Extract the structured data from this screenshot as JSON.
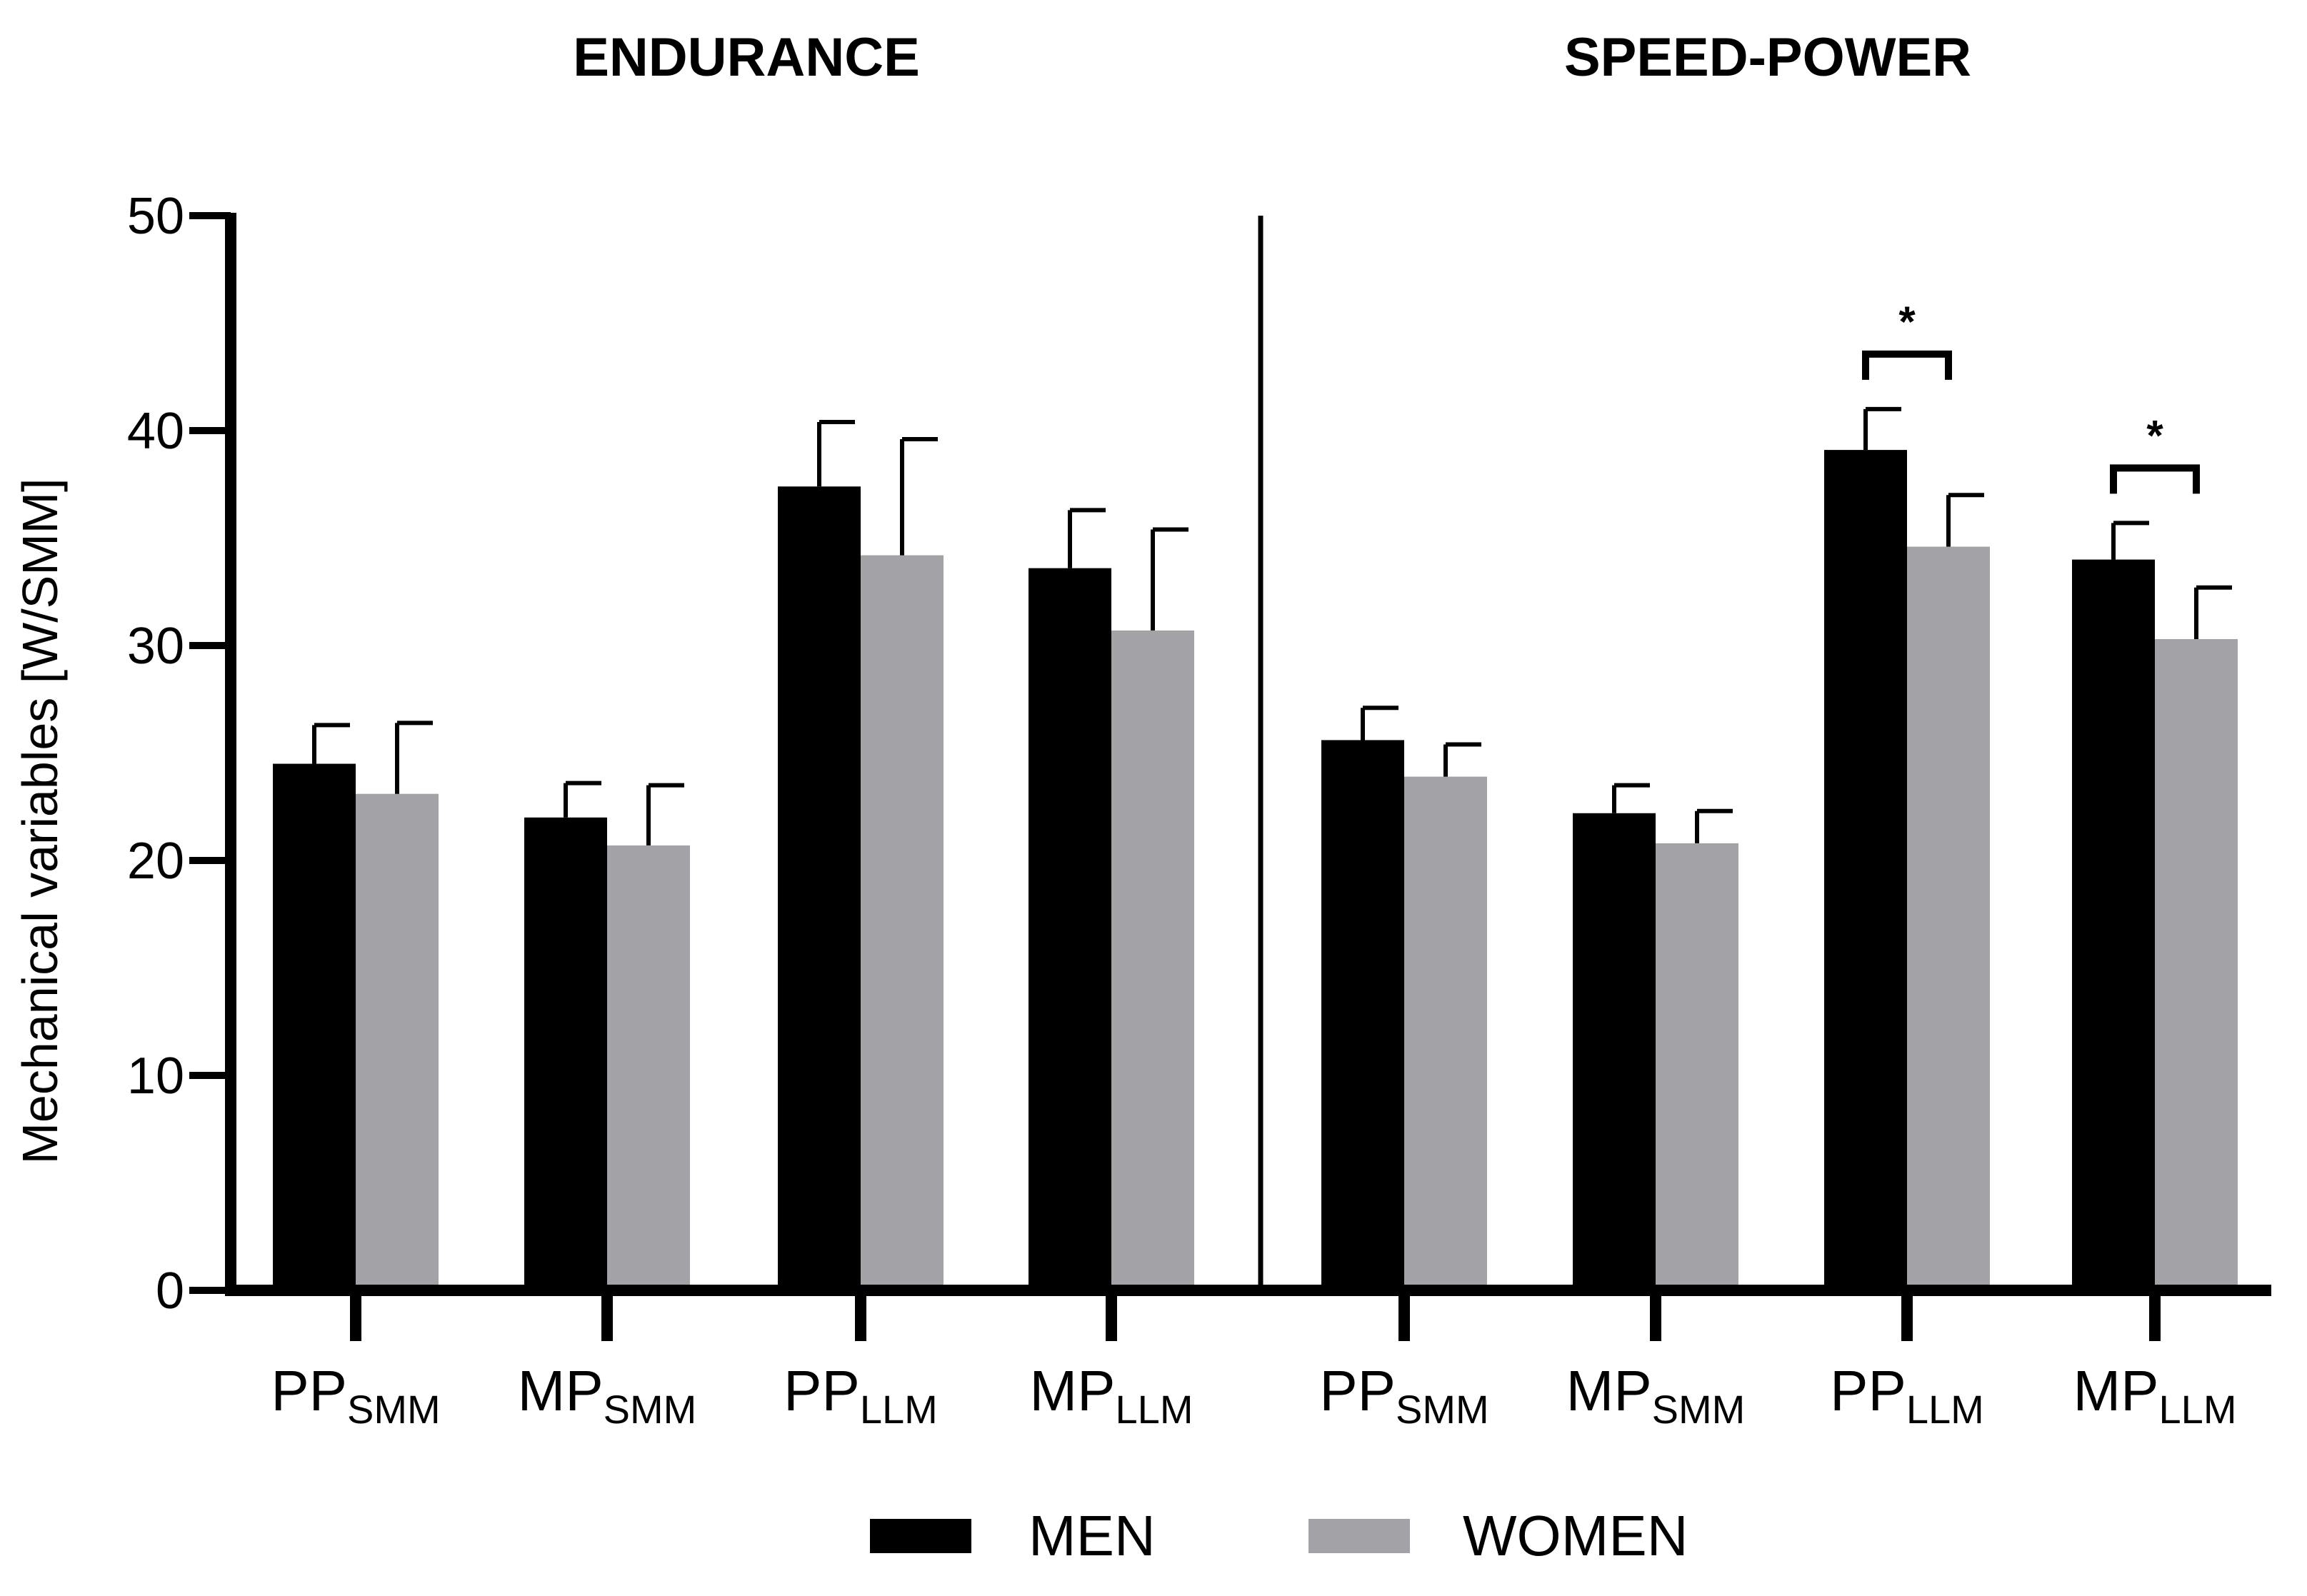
{
  "chart_data": {
    "type": "bar",
    "panels": [
      {
        "title": "ENDURANCE"
      },
      {
        "title": "SPEED-POWER"
      }
    ],
    "categories": [
      {
        "main": "PP",
        "sub": "SMM"
      },
      {
        "main": "MP",
        "sub": "SMM"
      },
      {
        "main": "PP",
        "sub": "LLM"
      },
      {
        "main": "MP",
        "sub": "LLM"
      }
    ],
    "series": [
      {
        "name": "MEN",
        "color": "#000000",
        "values": [
          [
            24.5,
            22.0,
            37.4,
            33.6
          ],
          [
            25.6,
            22.2,
            39.1,
            34.0
          ]
        ],
        "errors": [
          [
            1.8,
            1.6,
            3.0,
            2.7
          ],
          [
            1.5,
            1.3,
            1.9,
            1.7
          ]
        ]
      },
      {
        "name": "WOMEN",
        "color": "#a3a3a7",
        "values": [
          [
            23.1,
            20.7,
            34.2,
            30.7
          ],
          [
            23.9,
            20.8,
            34.6,
            30.3
          ]
        ],
        "errors": [
          [
            3.3,
            2.8,
            5.4,
            4.7
          ],
          [
            1.5,
            1.5,
            2.4,
            2.4
          ]
        ]
      }
    ],
    "significance": [
      {
        "panel": 1,
        "category": 2,
        "label": "*"
      },
      {
        "panel": 1,
        "category": 3,
        "label": "*"
      }
    ],
    "ylabel": "Mechanical variables [W/SMM]",
    "ylim": [
      0,
      50
    ],
    "yticks": [
      0,
      10,
      20,
      30,
      40,
      50
    ],
    "legend_position": "bottom-center",
    "grid": false
  }
}
